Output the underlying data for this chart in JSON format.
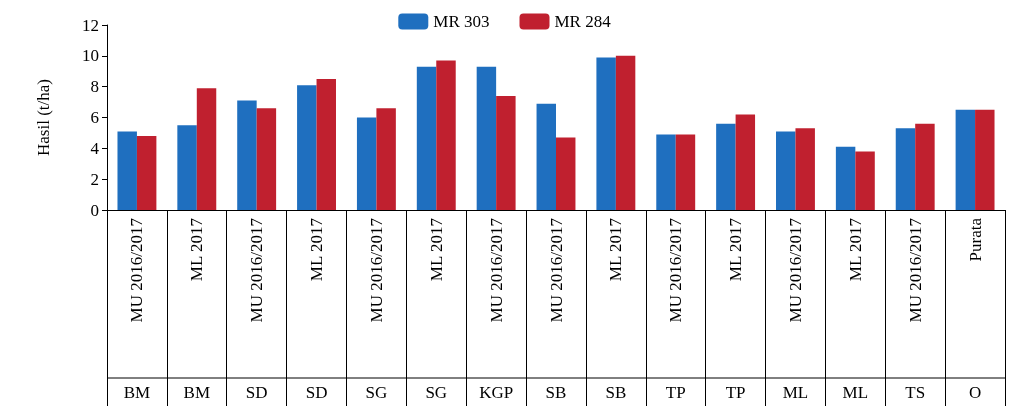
{
  "chart_data": {
    "type": "bar",
    "ylabel": "Hasil (t/ha)",
    "categories": [
      "MU 2016/2017",
      "ML 2017",
      "MU 2016/2017",
      "ML 2017",
      "MU 2016/2017",
      "ML 2017",
      "MU 2016/2017",
      "MU 2016/2017",
      "ML 2017",
      "MU 2016/2017",
      "ML 2017",
      "MU 2016/2017",
      "ML 2017",
      "MU 2016/2017",
      "Purata"
    ],
    "annotations": [
      "BM",
      "BM",
      "SD",
      "SD",
      "SG",
      "SG",
      "KGP",
      "SB",
      "SB",
      "TP",
      "TP",
      "ML",
      "ML",
      "TS",
      "O"
    ],
    "series": [
      {
        "name": "MR 303",
        "color": "#1f6fbf",
        "values": [
          5.1,
          5.5,
          7.1,
          8.1,
          6.0,
          9.3,
          9.3,
          6.9,
          9.9,
          4.9,
          5.6,
          5.1,
          4.1,
          5.3,
          6.5
        ]
      },
      {
        "name": "MR 284",
        "color": "#c0202f",
        "values": [
          4.8,
          7.9,
          6.6,
          8.5,
          6.6,
          9.7,
          7.4,
          4.7,
          10.0,
          4.9,
          6.2,
          5.3,
          3.8,
          5.6,
          6.5
        ]
      }
    ],
    "ylim": [
      0,
      12
    ],
    "yticks": [
      0,
      2,
      4,
      6,
      8,
      10,
      12
    ],
    "grid": false,
    "legend": "top"
  }
}
